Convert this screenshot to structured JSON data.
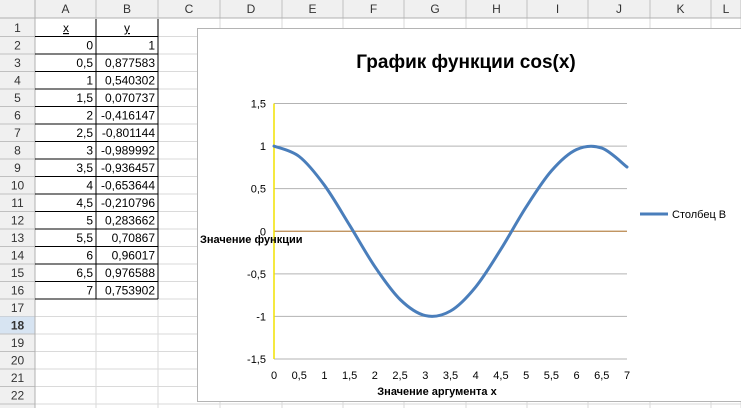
{
  "spreadsheet": {
    "column_headers": [
      "A",
      "B",
      "C",
      "D",
      "E",
      "F",
      "G",
      "H",
      "I",
      "J",
      "K",
      "L"
    ],
    "row_headers": [
      "1",
      "2",
      "3",
      "4",
      "5",
      "6",
      "7",
      "8",
      "9",
      "10",
      "11",
      "12",
      "13",
      "14",
      "15",
      "16",
      "17",
      "18",
      "19",
      "20",
      "21",
      "22"
    ],
    "selected_row": "18",
    "header_row": {
      "a": "x",
      "b": "y"
    },
    "rows": [
      {
        "a": "0",
        "b": "1"
      },
      {
        "a": "0,5",
        "b": "0,877583"
      },
      {
        "a": "1",
        "b": "0,540302"
      },
      {
        "a": "1,5",
        "b": "0,070737"
      },
      {
        "a": "2",
        "b": "-0,416147"
      },
      {
        "a": "2,5",
        "b": "-0,801144"
      },
      {
        "a": "3",
        "b": "-0,989992"
      },
      {
        "a": "3,5",
        "b": "-0,936457"
      },
      {
        "a": "4",
        "b": "-0,653644"
      },
      {
        "a": "4,5",
        "b": "-0,210796"
      },
      {
        "a": "5",
        "b": "0,283662"
      },
      {
        "a": "5,5",
        "b": "0,70867"
      },
      {
        "a": "6",
        "b": "0,96017"
      },
      {
        "a": "6,5",
        "b": "0,976588"
      },
      {
        "a": "7",
        "b": "0,753902"
      }
    ]
  },
  "chart_data": {
    "type": "line",
    "title": "График функции cos(x)",
    "xlabel": "Значение аргумента x",
    "ylabel": "Значение функции",
    "xlim": [
      0,
      7
    ],
    "ylim": [
      -1.5,
      1.5
    ],
    "x_ticks": [
      "0",
      "0,5",
      "1",
      "1,5",
      "2",
      "2,5",
      "3",
      "3,5",
      "4",
      "4,5",
      "5",
      "5,5",
      "6",
      "6,5",
      "7"
    ],
    "y_ticks": [
      "1,5",
      "1",
      "0,5",
      "0",
      "-0,5",
      "-1",
      "-1,5"
    ],
    "y_tick_values": [
      1.5,
      1,
      0.5,
      0,
      -0.5,
      -1,
      -1.5
    ],
    "grid": true,
    "legend_placement": "right",
    "colors": {
      "series": "#4a7ebb",
      "zero_line": "#b8864b",
      "y_axis": "#f2e200",
      "gridline": "#b3b3b3"
    },
    "x": [
      0,
      0.5,
      1,
      1.5,
      2,
      2.5,
      3,
      3.5,
      4,
      4.5,
      5,
      5.5,
      6,
      6.5,
      7
    ],
    "series": [
      {
        "name": "Столбец B",
        "values": [
          1,
          0.877583,
          0.540302,
          0.070737,
          -0.416147,
          -0.801144,
          -0.989992,
          -0.936457,
          -0.653644,
          -0.210796,
          0.283662,
          0.70867,
          0.96017,
          0.976588,
          0.753902
        ]
      }
    ]
  }
}
